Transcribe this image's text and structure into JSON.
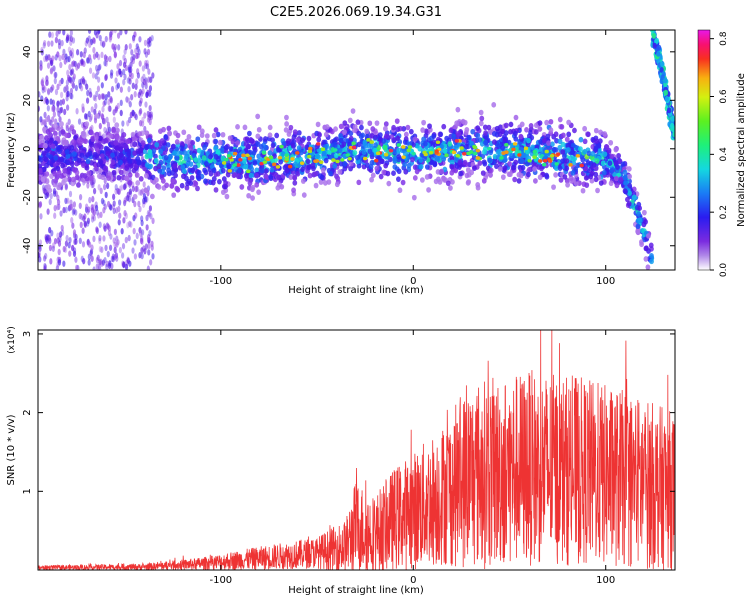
{
  "title": "C2E5.2026.069.19.34.G31",
  "chart_data": [
    {
      "type": "heatmap",
      "xlabel": "Height of straight line (km)",
      "ylabel": "Frequency (Hz)",
      "xlim": [
        -195,
        136
      ],
      "ylim": [
        -50,
        49
      ],
      "xticks": [
        -100,
        0,
        100
      ],
      "yticks": [
        -40,
        -20,
        0,
        20,
        40
      ],
      "colorbar": {
        "label": "Normalized spectral amplitude",
        "range": [
          0.0,
          0.83
        ],
        "ticks": [
          0.0,
          0.2,
          0.4,
          0.6,
          0.8
        ],
        "colormap": "rainbow (purple-blue-cyan-green-yellow-red-magenta)"
      },
      "ridge": {
        "center_freq": [
          {
            "x": -190,
            "y": -3
          },
          {
            "x": -150,
            "y": -3
          },
          {
            "x": -100,
            "y": -5
          },
          {
            "x": -60,
            "y": -4
          },
          {
            "x": -30,
            "y": 0
          },
          {
            "x": 0,
            "y": -2
          },
          {
            "x": 40,
            "y": 0
          },
          {
            "x": 80,
            "y": -3
          },
          {
            "x": 100,
            "y": -4
          },
          {
            "x": 110,
            "y": -12
          },
          {
            "x": 118,
            "y": -30
          },
          {
            "x": 125,
            "y": -48
          }
        ],
        "upper_branch": [
          {
            "x": 124,
            "y": 49
          },
          {
            "x": 130,
            "y": 30
          },
          {
            "x": 135,
            "y": 8
          }
        ]
      }
    },
    {
      "type": "line",
      "xlabel": "Height of straight line (km)",
      "ylabel": "SNR (10 * v/v)",
      "multiplier": "(x10⁴)",
      "xlim": [
        -195,
        136
      ],
      "ylim": [
        0,
        3.05
      ],
      "xticks": [
        -100,
        0,
        100
      ],
      "yticks": [
        1,
        2,
        3
      ],
      "color": "#ee3333",
      "envelope": [
        {
          "x": -195,
          "mean": 0.03,
          "amp": 0.03
        },
        {
          "x": -140,
          "mean": 0.04,
          "amp": 0.04
        },
        {
          "x": -110,
          "mean": 0.08,
          "amp": 0.08
        },
        {
          "x": -80,
          "mean": 0.15,
          "amp": 0.15
        },
        {
          "x": -50,
          "mean": 0.22,
          "amp": 0.2
        },
        {
          "x": -35,
          "mean": 0.3,
          "amp": 0.35
        },
        {
          "x": -30,
          "mean": 0.55,
          "amp": 0.6
        },
        {
          "x": -20,
          "mean": 0.45,
          "amp": 0.5
        },
        {
          "x": -10,
          "mean": 0.65,
          "amp": 0.65
        },
        {
          "x": 0,
          "mean": 0.75,
          "amp": 0.75
        },
        {
          "x": 15,
          "mean": 0.95,
          "amp": 0.9
        },
        {
          "x": 30,
          "mean": 1.2,
          "amp": 1.2
        },
        {
          "x": 60,
          "mean": 1.3,
          "amp": 1.25
        },
        {
          "x": 90,
          "mean": 1.25,
          "amp": 1.2
        },
        {
          "x": 120,
          "mean": 1.1,
          "amp": 1.1
        },
        {
          "x": 136,
          "mean": 1.0,
          "amp": 1.0
        }
      ]
    }
  ]
}
